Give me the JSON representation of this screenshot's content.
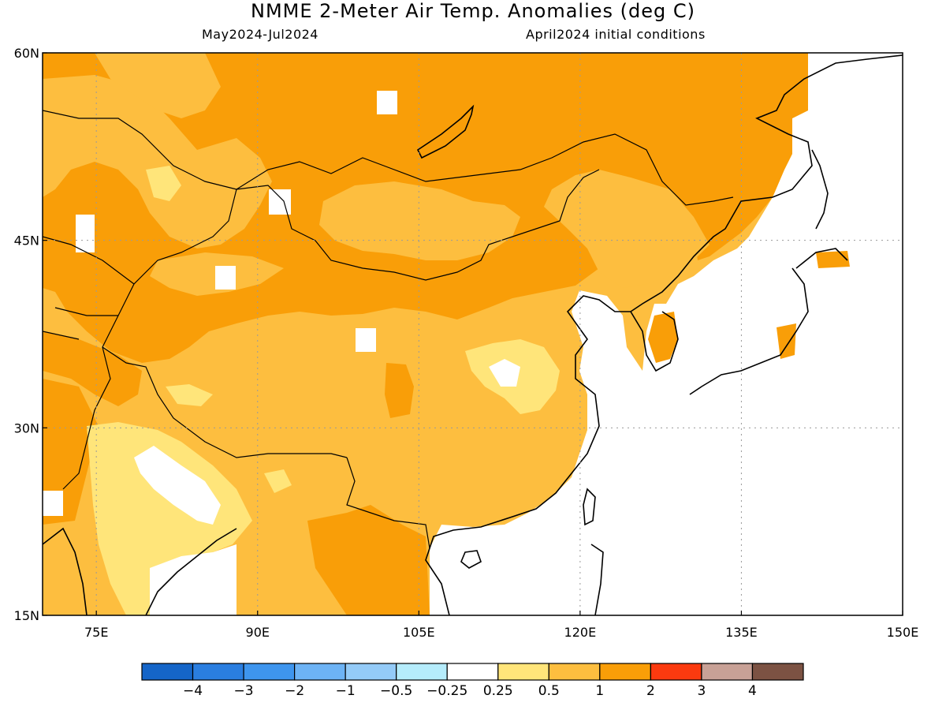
{
  "title": "NMME 2-Meter Air Temp. Anomalies (deg C)",
  "subtitle_left": "May2024-Jul2024",
  "subtitle_right": "April2024 initial conditions",
  "map": {
    "lon_range": [
      70,
      150
    ],
    "lat_range": [
      15,
      60
    ],
    "lon_ticks": [
      {
        "value": 75,
        "label": "75E"
      },
      {
        "value": 90,
        "label": "90E"
      },
      {
        "value": 105,
        "label": "105E"
      },
      {
        "value": 120,
        "label": "120E"
      },
      {
        "value": 135,
        "label": "135E"
      },
      {
        "value": 150,
        "label": "150E"
      }
    ],
    "lat_ticks": [
      {
        "value": 60,
        "label": "60N"
      },
      {
        "value": 45,
        "label": "45N"
      },
      {
        "value": 30,
        "label": "30N"
      },
      {
        "value": 15,
        "label": "15N"
      }
    ],
    "grid": true
  },
  "colorbar": {
    "colors": [
      "#1565c8",
      "#2a7ee0",
      "#3e95ee",
      "#6db3f5",
      "#94cbf8",
      "#b5ecfb",
      "#ffffff",
      "#ffe57a",
      "#fdbe3f",
      "#f99e08",
      "#fb3a0f",
      "#c8a196",
      "#7c5243"
    ],
    "labels": [
      "−4",
      "−3",
      "−2",
      "−1",
      "−0.5",
      "−0.25",
      "0.25",
      "0.5",
      "1",
      "2",
      "3",
      "4"
    ]
  }
}
